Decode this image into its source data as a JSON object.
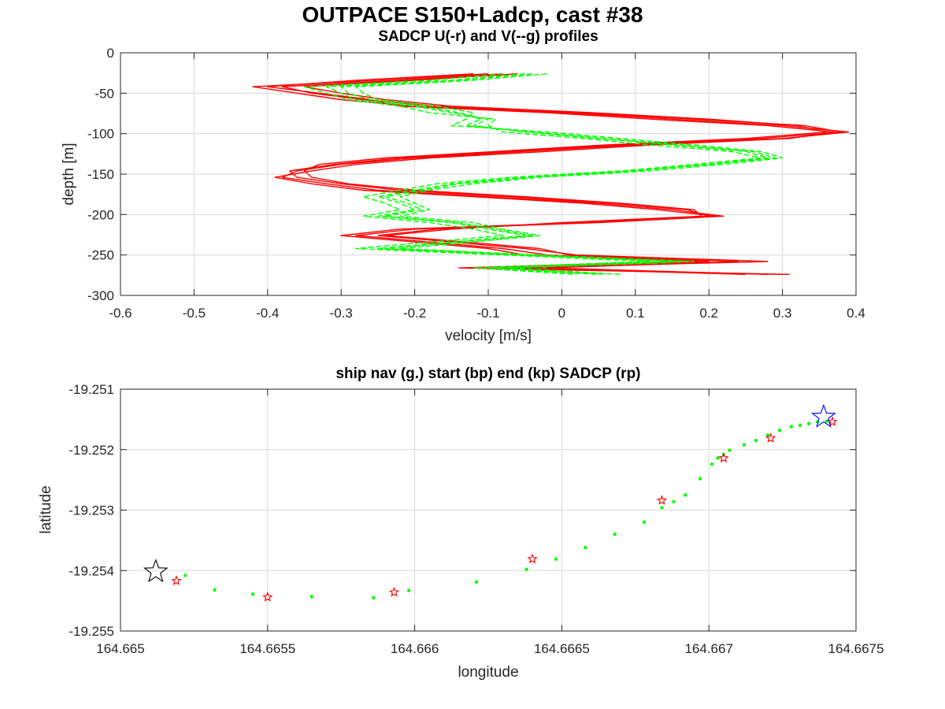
{
  "figure": {
    "title": "OUTPACE S150+Ladcp, cast #38"
  },
  "colors": {
    "u_profile": "#ff0000",
    "v_profile": "#00ff00",
    "ship_nav": "#00ff00",
    "sadcp_marker": "#ff0000",
    "start_marker": "#0000ff",
    "end_marker": "#000000",
    "grid": "#d9d9d9",
    "axis": "#262626"
  },
  "chart_data": [
    {
      "type": "line",
      "title": "SADCP U(-r) and V(--g) profiles",
      "xlabel": "velocity [m/s]",
      "ylabel": "depth [m]",
      "xlim": [
        -0.6,
        0.4
      ],
      "ylim": [
        -300,
        0
      ],
      "xticks": [
        "-0.6",
        "-0.5",
        "-0.4",
        "-0.3",
        "-0.2",
        "-0.1",
        "0",
        "0.1",
        "0.2",
        "0.3",
        "0.4"
      ],
      "yticks": [
        "0",
        "-50",
        "-100",
        "-150",
        "-200",
        "-250",
        "-300"
      ],
      "grid": true,
      "legend": "none",
      "depth": [
        -26,
        -34,
        -42,
        -50,
        -58,
        -66,
        -74,
        -82,
        -90,
        -98,
        -106,
        -114,
        -122,
        -130,
        -138,
        -146,
        -154,
        -162,
        -170,
        -178,
        -186,
        -194,
        -202,
        -210,
        -218,
        -226,
        -234,
        -242,
        -250,
        -258,
        -266,
        -274
      ],
      "series": [
        {
          "style": "solid-red",
          "profiles": [
            [
              -0.1,
              -0.25,
              -0.42,
              -0.36,
              -0.3,
              -0.2,
              0.0,
              0.15,
              0.3,
              0.39,
              0.3,
              0.1,
              -0.05,
              -0.2,
              -0.3,
              -0.36,
              -0.38,
              -0.32,
              -0.25,
              -0.1,
              0.05,
              0.15,
              0.22,
              0.05,
              -0.2,
              -0.28,
              -0.18,
              -0.08,
              -0.02,
              0.2,
              -0.1,
              0.3
            ],
            [
              -0.08,
              -0.22,
              -0.38,
              -0.34,
              -0.27,
              -0.17,
              0.02,
              0.18,
              0.33,
              0.38,
              0.27,
              0.08,
              -0.07,
              -0.22,
              -0.31,
              -0.37,
              -0.36,
              -0.3,
              -0.22,
              -0.07,
              0.07,
              0.17,
              0.2,
              0.02,
              -0.17,
              -0.25,
              -0.15,
              -0.05,
              0.02,
              0.28,
              -0.06,
              0.25
            ],
            [
              -0.12,
              -0.28,
              -0.4,
              -0.33,
              -0.26,
              -0.22,
              -0.02,
              0.12,
              0.28,
              0.37,
              0.31,
              0.12,
              -0.02,
              -0.18,
              -0.28,
              -0.34,
              -0.39,
              -0.34,
              -0.27,
              -0.12,
              0.03,
              0.13,
              0.21,
              0.04,
              -0.22,
              -0.3,
              -0.2,
              -0.1,
              -0.05,
              0.16,
              -0.14,
              0.31
            ],
            [
              -0.06,
              -0.2,
              -0.35,
              -0.3,
              -0.24,
              -0.15,
              0.04,
              0.2,
              0.32,
              0.36,
              0.25,
              0.06,
              -0.09,
              -0.24,
              -0.33,
              -0.35,
              -0.34,
              -0.29,
              -0.2,
              -0.05,
              0.08,
              0.18,
              0.19,
              0.0,
              -0.15,
              -0.24,
              -0.13,
              -0.03,
              0.01,
              0.24,
              -0.02,
              0.28
            ]
          ]
        },
        {
          "style": "dashed-green",
          "profiles": [
            [
              -0.05,
              -0.15,
              -0.32,
              -0.3,
              -0.28,
              -0.2,
              -0.15,
              -0.1,
              -0.12,
              -0.05,
              0.05,
              0.15,
              0.25,
              0.28,
              0.2,
              0.1,
              -0.05,
              -0.15,
              -0.2,
              -0.25,
              -0.22,
              -0.2,
              -0.25,
              -0.15,
              -0.1,
              -0.05,
              -0.15,
              -0.25,
              -0.05,
              0.15,
              -0.1,
              0.05
            ],
            [
              -0.02,
              -0.12,
              -0.28,
              -0.27,
              -0.25,
              -0.17,
              -0.12,
              -0.13,
              -0.15,
              -0.02,
              0.08,
              0.18,
              0.27,
              0.3,
              0.22,
              0.12,
              -0.03,
              -0.12,
              -0.18,
              -0.22,
              -0.2,
              -0.18,
              -0.22,
              -0.12,
              -0.08,
              -0.03,
              -0.12,
              -0.22,
              -0.03,
              0.18,
              -0.07,
              0.08
            ],
            [
              -0.08,
              -0.18,
              -0.35,
              -0.32,
              -0.29,
              -0.22,
              -0.18,
              -0.09,
              -0.1,
              -0.08,
              0.03,
              0.12,
              0.23,
              0.27,
              0.18,
              0.08,
              -0.07,
              -0.17,
              -0.22,
              -0.27,
              -0.24,
              -0.22,
              -0.27,
              -0.18,
              -0.12,
              -0.08,
              -0.18,
              -0.28,
              -0.08,
              0.12,
              -0.12,
              0.02
            ],
            [
              -0.04,
              -0.14,
              -0.3,
              -0.29,
              -0.26,
              -0.19,
              -0.14,
              -0.11,
              -0.13,
              -0.04,
              0.06,
              0.16,
              0.26,
              0.29,
              0.2,
              0.09,
              -0.04,
              -0.14,
              -0.19,
              -0.24,
              -0.21,
              -0.19,
              -0.24,
              -0.14,
              -0.09,
              -0.04,
              -0.14,
              -0.24,
              -0.05,
              0.16,
              -0.09,
              0.06
            ]
          ]
        }
      ]
    },
    {
      "type": "scatter",
      "title": "ship nav (g.) start (bp) end (kp) SADCP (rp)",
      "xlabel": "longitude",
      "ylabel": "latitude",
      "xlim": [
        164.665,
        164.6675
      ],
      "ylim": [
        -19.255,
        -19.251
      ],
      "xticks": [
        "164.665",
        "164.6655",
        "164.666",
        "164.6665",
        "164.667",
        "164.6675"
      ],
      "yticks": [
        "-19.251",
        "-19.252",
        "-19.253",
        "-19.254",
        "-19.255"
      ],
      "grid": true,
      "legend": "none",
      "ship_nav": [
        [
          164.66522,
          -19.25408
        ],
        [
          164.66532,
          -19.25432
        ],
        [
          164.66545,
          -19.25439
        ],
        [
          164.66565,
          -19.25443
        ],
        [
          164.66586,
          -19.25445
        ],
        [
          164.66598,
          -19.25433
        ],
        [
          164.66621,
          -19.25419
        ],
        [
          164.66638,
          -19.25398
        ],
        [
          164.66648,
          -19.25381
        ],
        [
          164.66658,
          -19.25362
        ],
        [
          164.66668,
          -19.2534
        ],
        [
          164.66678,
          -19.2532
        ],
        [
          164.66684,
          -19.25296
        ],
        [
          164.66688,
          -19.25286
        ],
        [
          164.66692,
          -19.25275
        ],
        [
          164.66697,
          -19.25248
        ],
        [
          164.66701,
          -19.25224
        ],
        [
          164.66703,
          -19.25214
        ],
        [
          164.66705,
          -19.25208
        ],
        [
          164.66707,
          -19.25201
        ],
        [
          164.66712,
          -19.25192
        ],
        [
          164.66716,
          -19.25185
        ],
        [
          164.6672,
          -19.25176
        ],
        [
          164.66724,
          -19.25168
        ],
        [
          164.66728,
          -19.25162
        ],
        [
          164.66731,
          -19.2516
        ],
        [
          164.66734,
          -19.25157
        ],
        [
          164.66737,
          -19.25154
        ],
        [
          164.6674,
          -19.25153
        ]
      ],
      "sadcp": [
        [
          164.66519,
          -19.25417
        ],
        [
          164.6655,
          -19.25444
        ],
        [
          164.66593,
          -19.25436
        ],
        [
          164.6664,
          -19.25381
        ],
        [
          164.66684,
          -19.25284
        ],
        [
          164.66705,
          -19.25214
        ],
        [
          164.66721,
          -19.25181
        ],
        [
          164.66742,
          -19.25154
        ]
      ],
      "start": [
        164.66739,
        -19.25146
      ],
      "end": [
        164.66512,
        -19.25402
      ]
    }
  ]
}
